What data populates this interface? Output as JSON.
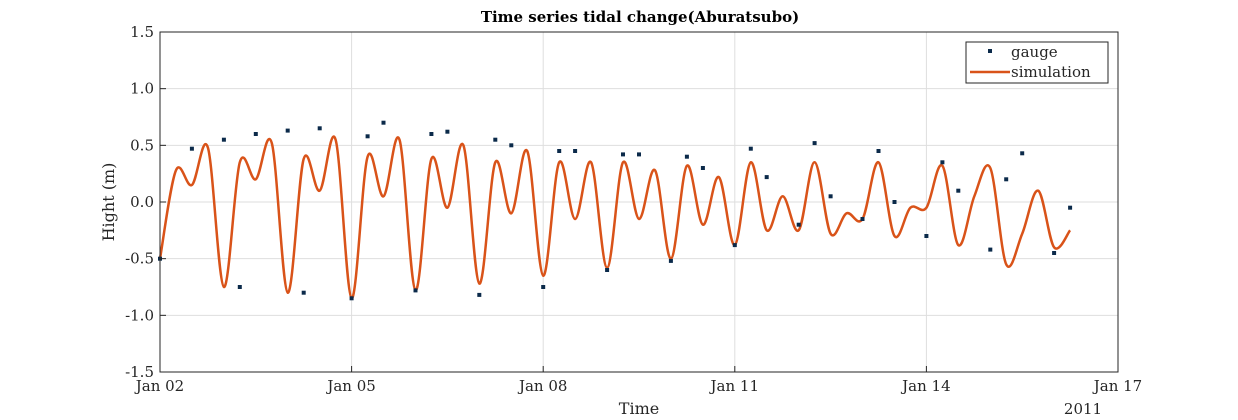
{
  "chart_data": {
    "type": "line",
    "title": "Time series tidal change(Aburatsubo)",
    "xlabel": "Time",
    "ylabel": "Hight (m)",
    "x_unit": "days",
    "x_year_label": "2011",
    "xlim": [
      "2011-01-02",
      "2011-01-17"
    ],
    "ylim": [
      -1.5,
      1.5
    ],
    "x_ticks": [
      "Jan 02",
      "Jan 05",
      "Jan 08",
      "Jan 11",
      "Jan 14",
      "Jan 17"
    ],
    "y_ticks": [
      "-1.5",
      "-1.0",
      "-0.5",
      "0.0",
      "0.5",
      "1.0",
      "1.5"
    ],
    "y_tick_values": [
      -1.5,
      -1.0,
      -0.5,
      0.0,
      0.5,
      1.0,
      1.5
    ],
    "grid": true,
    "legend_position": "top-right",
    "series": [
      {
        "name": "gauge",
        "style": "markers",
        "color": "#0b2a4a",
        "x": [
          "2011-01-02T00:00",
          "2011-01-02T12:00",
          "2011-01-03T00:00",
          "2011-01-03T06:00",
          "2011-01-03T12:00",
          "2011-01-04T00:00",
          "2011-01-04T06:00",
          "2011-01-04T12:00",
          "2011-01-05T00:00",
          "2011-01-05T06:00",
          "2011-01-05T12:00",
          "2011-01-06T00:00",
          "2011-01-06T06:00",
          "2011-01-06T12:00",
          "2011-01-07T00:00",
          "2011-01-07T06:00",
          "2011-01-07T12:00",
          "2011-01-08T00:00",
          "2011-01-08T06:00",
          "2011-01-08T12:00",
          "2011-01-09T00:00",
          "2011-01-09T06:00",
          "2011-01-09T12:00",
          "2011-01-10T00:00",
          "2011-01-10T06:00",
          "2011-01-10T12:00",
          "2011-01-11T00:00",
          "2011-01-11T06:00",
          "2011-01-11T12:00",
          "2011-01-12T00:00",
          "2011-01-12T06:00",
          "2011-01-12T12:00",
          "2011-01-13T00:00",
          "2011-01-13T06:00",
          "2011-01-13T12:00",
          "2011-01-14T00:00",
          "2011-01-14T06:00",
          "2011-01-14T12:00",
          "2011-01-15T00:00",
          "2011-01-15T06:00",
          "2011-01-15T12:00",
          "2011-01-16T00:00",
          "2011-01-16T06:00"
        ],
        "y": [
          -0.5,
          0.47,
          0.55,
          -0.75,
          0.6,
          0.63,
          -0.8,
          0.65,
          -0.85,
          0.58,
          0.7,
          -0.78,
          0.6,
          0.62,
          -0.82,
          0.55,
          0.5,
          -0.75,
          0.45,
          0.45,
          -0.6,
          0.42,
          0.42,
          -0.52,
          0.4,
          0.3,
          -0.38,
          0.47,
          0.22,
          -0.2,
          0.52,
          0.05,
          -0.15,
          0.45,
          0.0,
          -0.3,
          0.35,
          0.1,
          -0.42,
          0.2,
          0.43,
          -0.45,
          -0.05
        ]
      },
      {
        "name": "simulation",
        "style": "line",
        "color": "#d95319",
        "x": [
          "2011-01-02T00:00",
          "2011-01-02T06:00",
          "2011-01-02T12:00",
          "2011-01-02T18:00",
          "2011-01-03T00:00",
          "2011-01-03T06:00",
          "2011-01-03T12:00",
          "2011-01-03T18:00",
          "2011-01-04T00:00",
          "2011-01-04T06:00",
          "2011-01-04T12:00",
          "2011-01-04T18:00",
          "2011-01-05T00:00",
          "2011-01-05T06:00",
          "2011-01-05T12:00",
          "2011-01-05T18:00",
          "2011-01-06T00:00",
          "2011-01-06T06:00",
          "2011-01-06T12:00",
          "2011-01-06T18:00",
          "2011-01-07T00:00",
          "2011-01-07T06:00",
          "2011-01-07T12:00",
          "2011-01-07T18:00",
          "2011-01-08T00:00",
          "2011-01-08T06:00",
          "2011-01-08T12:00",
          "2011-01-08T18:00",
          "2011-01-09T00:00",
          "2011-01-09T06:00",
          "2011-01-09T12:00",
          "2011-01-09T18:00",
          "2011-01-10T00:00",
          "2011-01-10T06:00",
          "2011-01-10T12:00",
          "2011-01-10T18:00",
          "2011-01-11T00:00",
          "2011-01-11T06:00",
          "2011-01-11T12:00",
          "2011-01-11T18:00",
          "2011-01-12T00:00",
          "2011-01-12T06:00",
          "2011-01-12T12:00",
          "2011-01-12T18:00",
          "2011-01-13T00:00",
          "2011-01-13T06:00",
          "2011-01-13T12:00",
          "2011-01-13T18:00",
          "2011-01-14T00:00",
          "2011-01-14T06:00",
          "2011-01-14T12:00",
          "2011-01-14T18:00",
          "2011-01-15T00:00",
          "2011-01-15T06:00",
          "2011-01-15T12:00",
          "2011-01-15T18:00",
          "2011-01-16T00:00",
          "2011-01-16T06:00"
        ],
        "y": [
          -0.5,
          0.28,
          0.15,
          0.48,
          -0.75,
          0.35,
          0.2,
          0.52,
          -0.8,
          0.38,
          0.1,
          0.55,
          -0.85,
          0.4,
          0.05,
          0.55,
          -0.78,
          0.38,
          -0.05,
          0.5,
          -0.72,
          0.35,
          -0.1,
          0.45,
          -0.65,
          0.35,
          -0.15,
          0.35,
          -0.58,
          0.35,
          -0.15,
          0.28,
          -0.5,
          0.32,
          -0.2,
          0.22,
          -0.38,
          0.35,
          -0.25,
          0.05,
          -0.25,
          0.35,
          -0.28,
          -0.1,
          -0.15,
          0.35,
          -0.3,
          -0.05,
          -0.05,
          0.32,
          -0.38,
          0.05,
          0.3,
          -0.55,
          -0.28,
          0.1,
          -0.4,
          -0.25
        ]
      }
    ]
  }
}
